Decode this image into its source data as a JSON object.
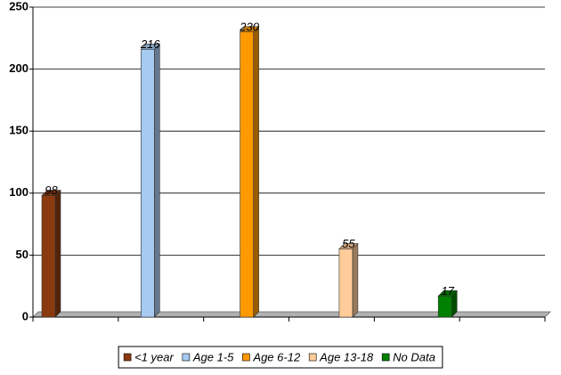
{
  "chart_data": {
    "type": "bar",
    "series": [
      {
        "name": "<1 year",
        "color": "#8b3a0f",
        "values": [
          98
        ]
      },
      {
        "name": "Age 1-5",
        "color": "#a6caf0",
        "values": [
          216
        ]
      },
      {
        "name": "Age 6-12",
        "color": "#ff9900",
        "values": [
          230
        ]
      },
      {
        "name": "Age 13-18",
        "color": "#ffcc99",
        "values": [
          55
        ]
      },
      {
        "name": "No Data",
        "color": "#008000",
        "values": [
          17
        ]
      }
    ],
    "ylim": [
      0,
      250
    ],
    "yticks": [
      0,
      50,
      100,
      150,
      200,
      250
    ],
    "grid": true,
    "data_labels": true,
    "legend": "bottom"
  }
}
